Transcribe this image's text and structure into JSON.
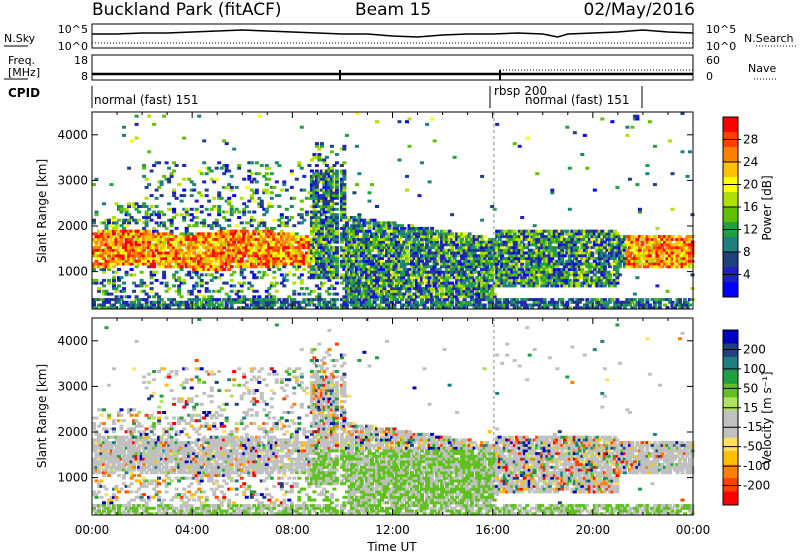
{
  "header": {
    "station": "Buckland Park (fitACF)",
    "beam": "Beam 15",
    "date": "02/May/2016"
  },
  "noise_panel": {
    "left_label": "N.Sky",
    "right_label": "N.Search",
    "left_ticks": [
      "10^5",
      "10^0"
    ],
    "right_ticks": [
      "10^5",
      "10^0"
    ]
  },
  "freq_panel": {
    "left_label_1": "Freq.",
    "left_label_2": "[MHz]",
    "right_label": "Nave",
    "left_ticks": [
      "18",
      "8"
    ],
    "right_ticks": [
      "60",
      "0"
    ]
  },
  "cpid_panel": {
    "label": "CPID",
    "segments": [
      {
        "text": "normal (fast) 151",
        "start_hour": 0.0
      },
      {
        "text": "rbsp 200",
        "start_hour": 16.1
      },
      {
        "text": "normal (fast) 151",
        "start_hour": 16.8
      }
    ]
  },
  "x_axis": {
    "label": "Time UT",
    "range_hours": [
      0,
      24
    ],
    "ticks": [
      "00:00",
      "04:00",
      "08:00",
      "12:00",
      "16:00",
      "20:00",
      "00:00"
    ]
  },
  "chart_data": [
    {
      "type": "heatmap",
      "ylabel": "Slant Range [km]",
      "ylim": [
        180,
        4500
      ],
      "yticks": [
        1000,
        2000,
        3000,
        4000
      ],
      "colorbar": {
        "label": "Power [dB]",
        "ticks": [
          "28",
          "24",
          "20",
          "16",
          "12",
          "8",
          "4"
        ],
        "colors": [
          "#ff0000",
          "#ff4000",
          "#ff8000",
          "#ffc000",
          "#ffff00",
          "#b0e000",
          "#60c000",
          "#20a040",
          "#208080",
          "#204080",
          "#2020c0",
          "#0000ff"
        ]
      },
      "features": [
        {
          "t0": 0.0,
          "t1": 8.6,
          "r0": 1000,
          "r1": 1950,
          "value": "high"
        },
        {
          "t0": 7.2,
          "t1": 8.2,
          "r0": 1850,
          "r1": 2200,
          "value": "high"
        },
        {
          "t0": 12.2,
          "t1": 13.0,
          "r0": 180,
          "r1": 450,
          "value": "high"
        },
        {
          "t0": 21.3,
          "t1": 24.0,
          "r0": 1000,
          "r1": 1700,
          "value": "high"
        }
      ]
    },
    {
      "type": "heatmap",
      "ylabel": "Slant Range [km]",
      "ylim": [
        180,
        4500
      ],
      "yticks": [
        1000,
        2000,
        3000,
        4000
      ],
      "colorbar": {
        "label": "Velocity [m s⁻¹]",
        "ticks": [
          "200",
          "100",
          "50",
          "15",
          "-15",
          "-50",
          "-100",
          "-200"
        ],
        "colors": [
          "#0000c0",
          "#204080",
          "#208080",
          "#20a040",
          "#60c020",
          "#b0e060",
          "#c0c0c0",
          "#c0c0c0",
          "#ffe060",
          "#ffc000",
          "#ff8000",
          "#ff4000",
          "#ff0000"
        ]
      }
    }
  ]
}
